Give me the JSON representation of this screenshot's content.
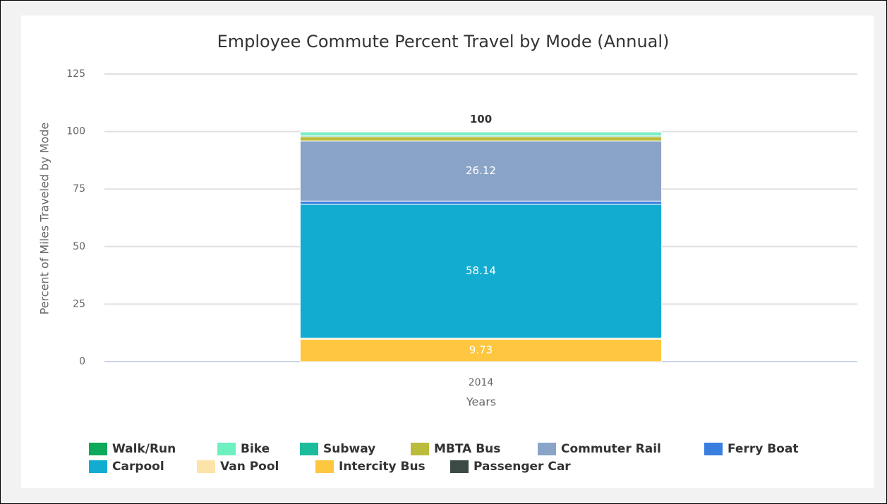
{
  "chart_data": {
    "type": "stacked-bar",
    "title": "Employee Commute Percent Travel by Mode (Annual)",
    "xlabel": "Years",
    "ylabel": "Percent of Miles Traveled by Mode",
    "categories": [
      "2014"
    ],
    "ylim": [
      0,
      125
    ],
    "yticks": [
      0,
      25,
      50,
      75,
      100,
      125
    ],
    "grid": true,
    "legend": "bottom",
    "totals": [
      100
    ],
    "series": [
      {
        "name": "Walk/Run",
        "color": "#0fa95b",
        "values": [
          0.4
        ]
      },
      {
        "name": "Bike",
        "color": "#6ff0c0",
        "values": [
          1.3
        ]
      },
      {
        "name": "Subway",
        "color": "#1abc9c",
        "values": [
          0.5
        ]
      },
      {
        "name": "MBTA Bus",
        "color": "#bcbc3c",
        "values": [
          1.9
        ]
      },
      {
        "name": "Commuter Rail",
        "color": "#8aa4c8",
        "values": [
          26.12
        ]
      },
      {
        "name": "Ferry Boat",
        "color": "#3a7ee0",
        "values": [
          1.4
        ]
      },
      {
        "name": "Carpool",
        "color": "#12acd1",
        "values": [
          58.14
        ]
      },
      {
        "name": "Van Pool",
        "color": "#fce4a8",
        "values": [
          0.5
        ]
      },
      {
        "name": "Intercity Bus",
        "color": "#fec73f",
        "values": [
          9.73
        ]
      },
      {
        "name": "Passenger Car",
        "color": "#3b4a45",
        "values": [
          0
        ]
      }
    ]
  }
}
